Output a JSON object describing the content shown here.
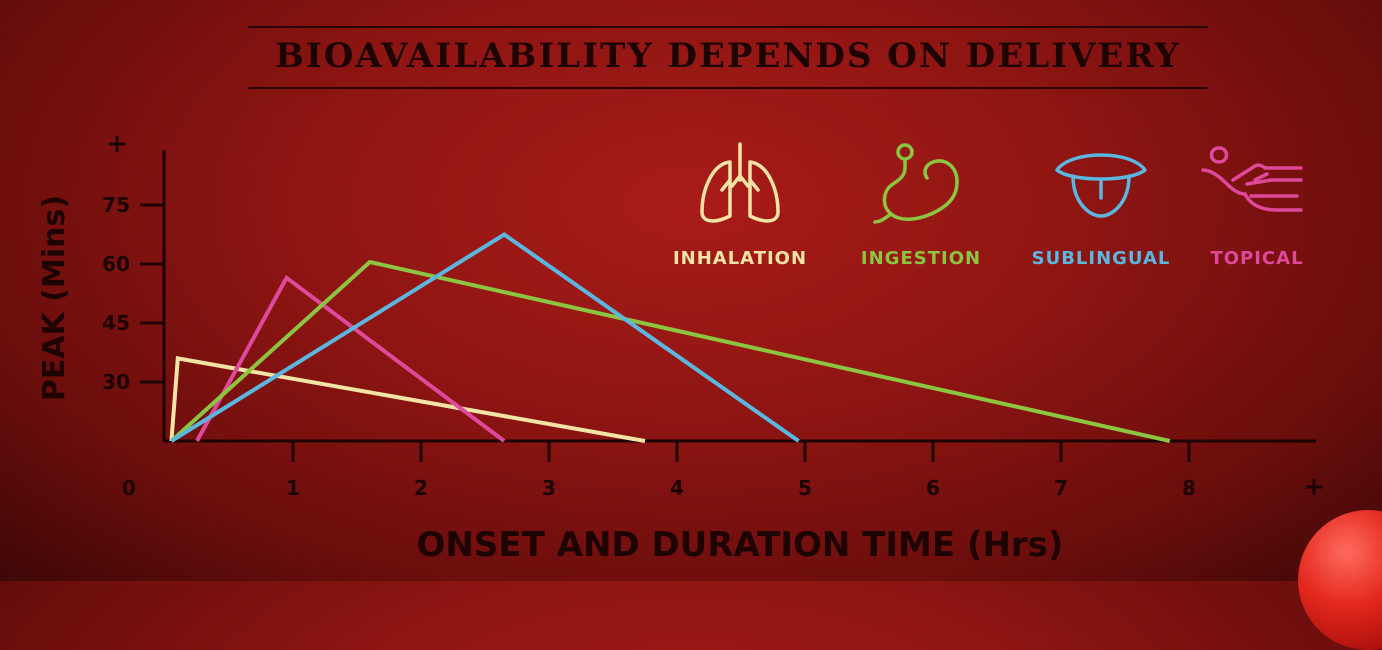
{
  "title": "BIOAVAILABILITY DEPENDS ON DELIVERY",
  "legend": [
    {
      "label": "INHALATION",
      "color": "#f3e4a6",
      "icon": "lungs-icon"
    },
    {
      "label": "INGESTION",
      "color": "#8cc641",
      "icon": "stomach-icon"
    },
    {
      "label": "SUBLINGUAL",
      "color": "#5bb6e0",
      "icon": "tongue-icon"
    },
    {
      "label": "TOPICAL",
      "color": "#e0489c",
      "icon": "hand-icon"
    }
  ],
  "chart_data": {
    "type": "line",
    "title": "BIOAVAILABILITY DEPENDS ON DELIVERY",
    "xlabel": "ONSET AND DURATION TIME (Hrs)",
    "ylabel": "PEAK  (Mins)",
    "x_ticks": [
      "0",
      "1",
      "2",
      "3",
      "4",
      "5",
      "6",
      "7",
      "8",
      "+"
    ],
    "y_ticks": [
      "30",
      "45",
      "60",
      "75",
      "+"
    ],
    "xlim": [
      0,
      9
    ],
    "ylim": [
      15,
      90
    ],
    "grid": false,
    "legend_position": "top-right",
    "series": [
      {
        "name": "INHALATION",
        "color": "#f3e4a6",
        "points": [
          [
            0.05,
            15
          ],
          [
            0.1,
            36
          ],
          [
            3.75,
            15
          ]
        ]
      },
      {
        "name": "TOPICAL",
        "color": "#e0489c",
        "points": [
          [
            0.25,
            15
          ],
          [
            0.95,
            56.5
          ],
          [
            2.65,
            15
          ]
        ]
      },
      {
        "name": "INGESTION",
        "color": "#8cc641",
        "points": [
          [
            0.05,
            15
          ],
          [
            1.6,
            60.5
          ],
          [
            7.85,
            15
          ]
        ]
      },
      {
        "name": "SUBLINGUAL",
        "color": "#5bb6e0",
        "points": [
          [
            0.05,
            15
          ],
          [
            2.65,
            67.5
          ],
          [
            4.95,
            15
          ]
        ]
      }
    ]
  }
}
